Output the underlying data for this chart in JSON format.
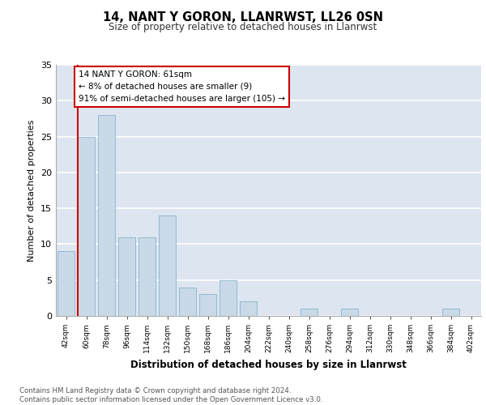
{
  "title1": "14, NANT Y GORON, LLANRWST, LL26 0SN",
  "title2": "Size of property relative to detached houses in Llanrwst",
  "xlabel": "Distribution of detached houses by size in Llanrwst",
  "ylabel": "Number of detached properties",
  "categories": [
    "42sqm",
    "60sqm",
    "78sqm",
    "96sqm",
    "114sqm",
    "132sqm",
    "150sqm",
    "168sqm",
    "186sqm",
    "204sqm",
    "222sqm",
    "240sqm",
    "258sqm",
    "276sqm",
    "294sqm",
    "312sqm",
    "330sqm",
    "348sqm",
    "366sqm",
    "384sqm",
    "402sqm"
  ],
  "values": [
    9,
    25,
    28,
    11,
    11,
    14,
    4,
    3,
    5,
    2,
    0,
    0,
    1,
    0,
    1,
    0,
    0,
    0,
    0,
    1,
    0
  ],
  "bar_color": "#c9d9e8",
  "bar_edge_color": "#7aaac8",
  "background_color": "#dde6f0",
  "grid_color": "#ffffff",
  "annotation_text_line1": "14 NANT Y GORON: 61sqm",
  "annotation_text_line2": "← 8% of detached houses are smaller (9)",
  "annotation_text_line3": "91% of semi-detached houses are larger (105) →",
  "annotation_box_color": "#ffffff",
  "annotation_box_edge_color": "#cc0000",
  "red_line_color": "#cc0000",
  "ylim": [
    0,
    35
  ],
  "yticks": [
    0,
    5,
    10,
    15,
    20,
    25,
    30,
    35
  ],
  "footer_line1": "Contains HM Land Registry data © Crown copyright and database right 2024.",
  "footer_line2": "Contains public sector information licensed under the Open Government Licence v3.0."
}
